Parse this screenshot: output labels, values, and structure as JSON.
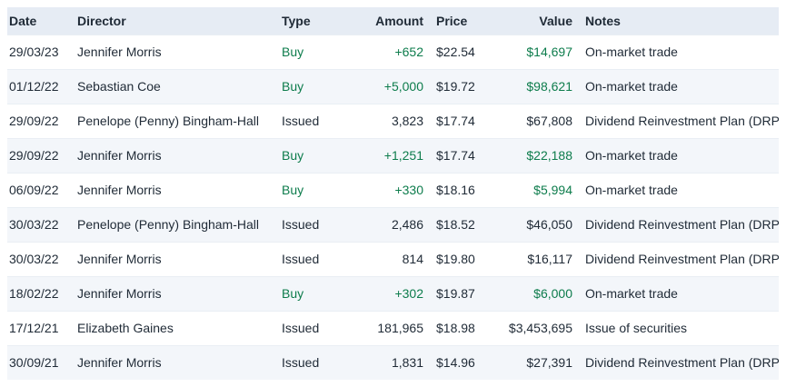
{
  "table": {
    "columns": [
      {
        "key": "date",
        "label": "Date",
        "align": "left"
      },
      {
        "key": "director",
        "label": "Director",
        "align": "left"
      },
      {
        "key": "type",
        "label": "Type",
        "align": "left"
      },
      {
        "key": "amount",
        "label": "Amount",
        "align": "right"
      },
      {
        "key": "price",
        "label": "Price",
        "align": "left"
      },
      {
        "key": "value",
        "label": "Value",
        "align": "right"
      },
      {
        "key": "notes",
        "label": "Notes",
        "align": "left"
      }
    ],
    "rows": [
      {
        "date": "29/03/23",
        "director": "Jennifer Morris",
        "type": "Buy",
        "amount": "+652",
        "price": "$22.54",
        "value": "$14,697",
        "notes": "On-market trade",
        "buy": true
      },
      {
        "date": "01/12/22",
        "director": "Sebastian Coe",
        "type": "Buy",
        "amount": "+5,000",
        "price": "$19.72",
        "value": "$98,621",
        "notes": "On-market trade",
        "buy": true
      },
      {
        "date": "29/09/22",
        "director": "Penelope (Penny) Bingham-Hall",
        "type": "Issued",
        "amount": "3,823",
        "price": "$17.74",
        "value": "$67,808",
        "notes": "Dividend Reinvestment Plan (DRP)",
        "buy": false
      },
      {
        "date": "29/09/22",
        "director": "Jennifer Morris",
        "type": "Buy",
        "amount": "+1,251",
        "price": "$17.74",
        "value": "$22,188",
        "notes": "On-market trade",
        "buy": true
      },
      {
        "date": "06/09/22",
        "director": "Jennifer Morris",
        "type": "Buy",
        "amount": "+330",
        "price": "$18.16",
        "value": "$5,994",
        "notes": "On-market trade",
        "buy": true
      },
      {
        "date": "30/03/22",
        "director": "Penelope (Penny) Bingham-Hall",
        "type": "Issued",
        "amount": "2,486",
        "price": "$18.52",
        "value": "$46,050",
        "notes": "Dividend Reinvestment Plan (DRP)",
        "buy": false
      },
      {
        "date": "30/03/22",
        "director": "Jennifer Morris",
        "type": "Issued",
        "amount": "814",
        "price": "$19.80",
        "value": "$16,117",
        "notes": "Dividend Reinvestment Plan (DRP)",
        "buy": false
      },
      {
        "date": "18/02/22",
        "director": "Jennifer Morris",
        "type": "Buy",
        "amount": "+302",
        "price": "$19.87",
        "value": "$6,000",
        "notes": "On-market trade",
        "buy": true
      },
      {
        "date": "17/12/21",
        "director": "Elizabeth Gaines",
        "type": "Issued",
        "amount": "181,965",
        "price": "$18.98",
        "value": "$3,453,695",
        "notes": "Issue of securities",
        "buy": false
      },
      {
        "date": "30/09/21",
        "director": "Jennifer Morris",
        "type": "Issued",
        "amount": "1,831",
        "price": "$14.96",
        "value": "$27,391",
        "notes": "Dividend Reinvestment Plan (DRP)",
        "buy": false
      }
    ]
  },
  "colors": {
    "header_bg": "#e6ecf4",
    "row_alt_bg": "#f3f6fa",
    "buy_green": "#0d7c4c",
    "text": "#1f2a36",
    "border": "#e9eef4"
  }
}
